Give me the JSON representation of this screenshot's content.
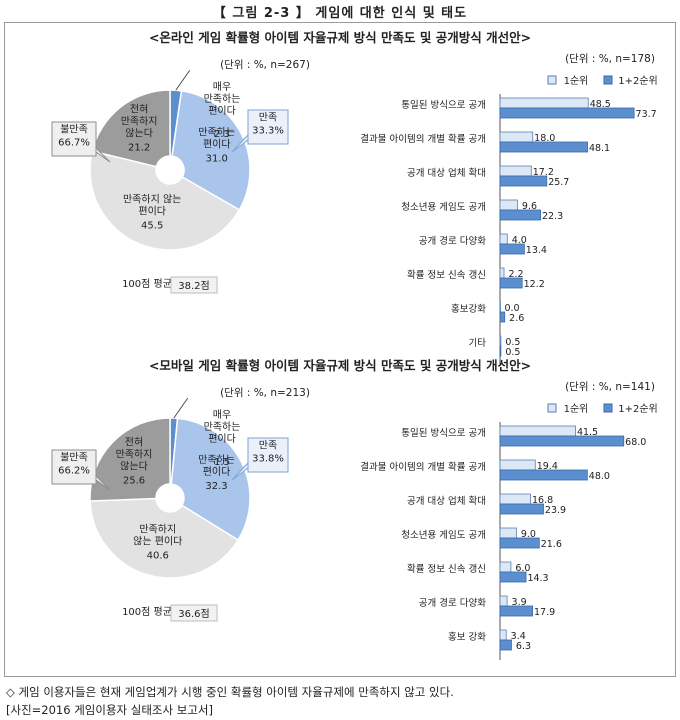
{
  "figure_title": "【 그림 2-3 】 게임에 대한 인식 및 태도",
  "captions": [
    "◇ 게임 이용자들은 현재 게임업계가 시행 중인 확률형 아이템 자율규제에 만족하지 않고 있다.",
    "[사진=2016 게임이용자 실태조사 보고서]"
  ],
  "colors": {
    "blue": "#5b8fd0",
    "light_blue": "#a9c5ec",
    "dark_gray": "#9c9c9c",
    "light_gray": "#e2e2e2",
    "bar_light": "#dce8f6",
    "bar_dark": "#5b8fd0"
  },
  "chart_data": [
    {
      "type": "pie",
      "section_title": "<온라인 게임 확률형 아이템 자율규제 방식 만족도 및 공개방식 개선안>",
      "unit": "(단위 : %, n=267)",
      "slices": [
        {
          "label": "매우\n만족하는\n편이다",
          "value": 2.3
        },
        {
          "label": "만족하는\n편이다",
          "value": 31.0
        },
        {
          "label": "만족하지 않는\n편이다",
          "value": 45.5
        },
        {
          "label": "전혀\n만족하지\n않는다",
          "value": 21.2
        }
      ],
      "satisfied_callout": "만족\n33.3%",
      "dissatisfied_callout": "불만족\n66.7%",
      "avg_label": "100점 평균",
      "avg_value": "38.2점"
    },
    {
      "type": "bar",
      "unit": "(단위 : %, n=178)",
      "series": [
        {
          "name": "1순위"
        },
        {
          "name": "1+2순위"
        }
      ],
      "categories": [
        "통일된 방식으로 공개",
        "결과물 아이템의 개별 확률 공개",
        "공개 대상 업체 확대",
        "청소년용 게임도 공개",
        "공개 경로 다양화",
        "확률 정보 신속 갱신",
        "홍보강화",
        "기타"
      ],
      "first": [
        48.5,
        18.0,
        17.2,
        9.6,
        4.0,
        2.2,
        0.0,
        0.5
      ],
      "first_second": [
        73.7,
        48.1,
        25.7,
        22.3,
        13.4,
        12.2,
        2.6,
        0.5
      ],
      "value_labels_first": [
        "48.5",
        "18.0",
        "17.2",
        "9.6",
        "4.0",
        "2.2",
        "0.0",
        "0.5"
      ],
      "value_labels_first_second": [
        "73.7",
        "48.1",
        "25.7",
        "22.3",
        "13.4",
        "12.2",
        "2.6",
        "0.5"
      ]
    },
    {
      "type": "pie",
      "section_title": "<모바일 게임 확률형 아이템 자율규제 방식 만족도 및 공개방식 개선안>",
      "unit": "(단위 : %, n=213)",
      "slices": [
        {
          "label": "매우\n만족하는\n편이다",
          "value": 1.5
        },
        {
          "label": "만족하는\n편이다",
          "value": 32.3
        },
        {
          "label": "만족하지\n않는 편이다",
          "value": 40.6
        },
        {
          "label": "전혀\n만족하지\n않는다",
          "value": 25.6
        }
      ],
      "satisfied_callout": "만족\n33.8%",
      "dissatisfied_callout": "불만족\n66.2%",
      "avg_label": "100점 평균",
      "avg_value": "36.6점"
    },
    {
      "type": "bar",
      "unit": "(단위 : %, n=141)",
      "series": [
        {
          "name": "1순위"
        },
        {
          "name": "1+2순위"
        }
      ],
      "categories": [
        "통일된 방식으로 공개",
        "결과물 아이템의 개별 확률 공개",
        "공개 대상 업체 확대",
        "청소년용 게임도 공개",
        "확률 정보 신속 갱신",
        "공개 경로 다양화",
        "홍보 강화"
      ],
      "first": [
        41.5,
        19.4,
        16.8,
        9.0,
        6.0,
        3.9,
        3.4
      ],
      "first_second": [
        68.0,
        48.0,
        23.9,
        21.6,
        14.3,
        17.9,
        6.3
      ],
      "value_labels_first": [
        "41.5",
        "19.4",
        "16.8",
        "9.0",
        "6.0",
        "3.9",
        "3.4"
      ],
      "value_labels_first_second": [
        "68.0",
        "48.0",
        "23.9",
        "21.6",
        "14.3",
        "17.9",
        "6.3"
      ]
    }
  ]
}
